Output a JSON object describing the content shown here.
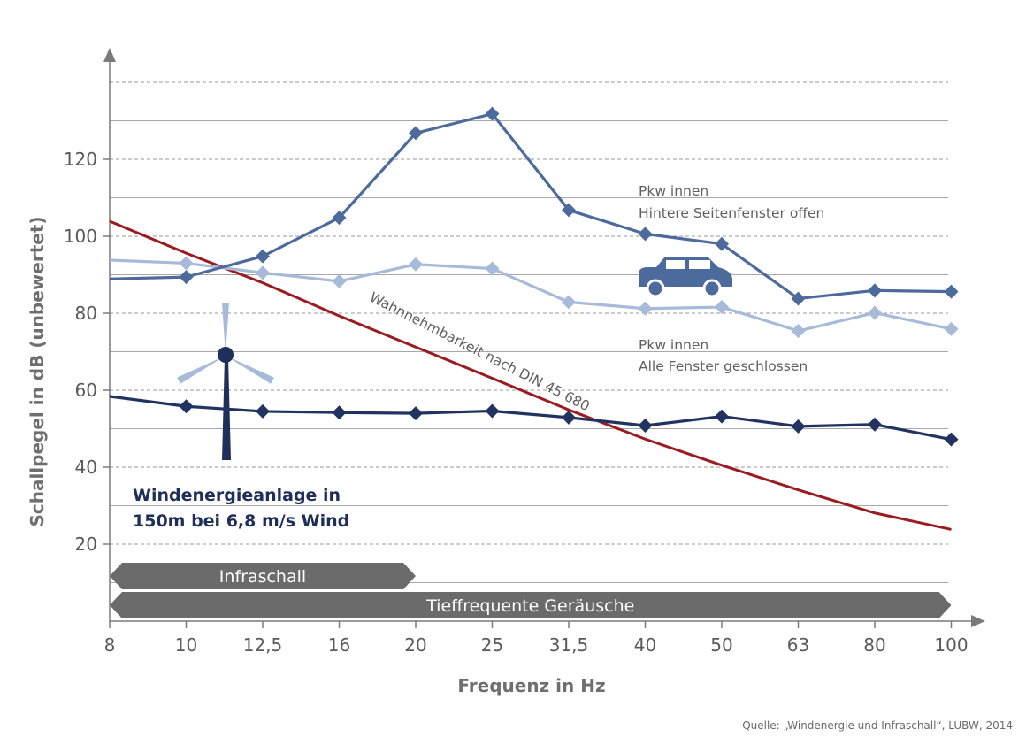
{
  "chart_data": {
    "type": "line",
    "xlabel": "Frequenz in Hz",
    "ylabel": "Schallpegel in dB (unbewertet)",
    "x_categories": [
      "8",
      "10",
      "12,5",
      "16",
      "20",
      "25",
      "31,5",
      "40",
      "50",
      "63",
      "80",
      "100"
    ],
    "y_ticks": [
      20,
      40,
      60,
      80,
      100,
      120
    ],
    "ylim": [
      0,
      140
    ],
    "series": [
      {
        "name": "Pkw innen – Hintere Seitenfenster offen",
        "color": "#4d6a9c",
        "values": [
          88.9,
          89.4,
          94.8,
          104.8,
          126.8,
          131.8,
          106.8,
          100.6,
          98.0,
          83.8,
          85.9,
          85.6
        ]
      },
      {
        "name": "Pkw innen – Alle Fenster geschlossen",
        "color": "#a7bad9",
        "values": [
          93.8,
          93.0,
          90.5,
          88.3,
          92.7,
          91.6,
          82.9,
          81.2,
          81.6,
          75.4,
          80.1,
          75.9
        ]
      },
      {
        "name": "Windenergieanlage in 150m bei 6,8 m/s Wind",
        "color": "#213461",
        "values": [
          58.4,
          55.8,
          54.5,
          54.2,
          54.0,
          54.6,
          52.9,
          50.8,
          53.2,
          50.6,
          51.1,
          47.2
        ]
      },
      {
        "name": "Wahrnehmbarkeit nach DIN 45 680",
        "color": "#9b1c20",
        "values": [
          103.9,
          95.6,
          87.9,
          79.3,
          71.2,
          63.1,
          54.9,
          47.3,
          40.5,
          34.1,
          28.1,
          23.8
        ]
      }
    ],
    "annotations": {
      "car_open_line1": "Pkw innen",
      "car_open_line2": "Hintere Seitenfenster offen",
      "car_closed_line1": "Pkw innen",
      "car_closed_line2": "Alle Fenster geschlossen",
      "wind_line1": "Windenergieanlage in",
      "wind_line2": "150m bei 6,8 m/s Wind",
      "din_label": "Wahnnehmbarkeit nach DIN 45 680"
    },
    "bands": [
      {
        "label": "Infraschall",
        "from": "8",
        "to": "20"
      },
      {
        "label": "Tieffrequente Geräusche",
        "from": "8",
        "to": "100"
      }
    ],
    "icons": [
      "car-icon",
      "wind-turbine-icon"
    ],
    "source": "Quelle: „Windenergie und Infraschall“, LUBW, 2014"
  }
}
